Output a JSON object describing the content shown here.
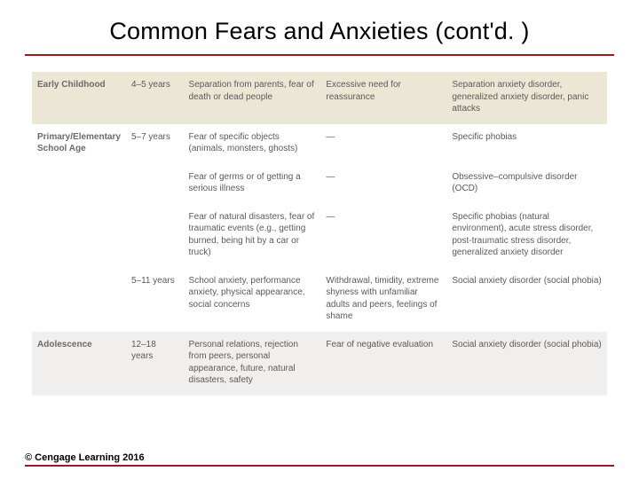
{
  "title": "Common Fears and Anxieties (cont'd. )",
  "footer": "© Cengage Learning 2016",
  "colors": {
    "accent_rule": "#9a1b1e",
    "band_beige": "#ece6d4",
    "band_white": "#ffffff",
    "band_grey": "#f1efed",
    "text_body": "#5a5a5a",
    "text_heading": "#6a6a6a"
  },
  "table": {
    "type": "table",
    "columns": [
      "stage",
      "age",
      "fears",
      "symptoms",
      "disorders"
    ],
    "column_widths_pct": [
      16,
      10,
      24,
      22,
      28
    ],
    "fontsize_pt": 10,
    "rows": [
      {
        "band": "beige",
        "stage": "Early Childhood",
        "age": "4–5 years",
        "fears": "Separation from parents, fear of death or dead people",
        "symptoms": "Excessive need for reassurance",
        "disorders": "Separation anxiety disorder, generalized anxiety disorder, panic attacks"
      },
      {
        "band": "white",
        "stage": "Primary/Elementary School Age",
        "age": "5–7 years",
        "fears": "Fear of specific objects (animals, monsters, ghosts)",
        "symptoms": "—",
        "disorders": "Specific phobias"
      },
      {
        "band": "white",
        "stage": "",
        "age": "",
        "fears": "Fear of germs or of getting a serious illness",
        "symptoms": "—",
        "disorders": "Obsessive–compulsive disorder (OCD)"
      },
      {
        "band": "white",
        "stage": "",
        "age": "",
        "fears": "Fear of natural disasters, fear of traumatic events (e.g., getting burned, being hit by a car or truck)",
        "symptoms": "—",
        "disorders": "Specific phobias (natural environment), acute stress disorder, post-traumatic stress disorder, generalized anxiety disorder"
      },
      {
        "band": "white",
        "stage": "",
        "age": "5–11 years",
        "fears": "School anxiety, performance anxiety, physical appearance, social concerns",
        "symptoms": "Withdrawal, timidity, extreme shyness with unfamiliar adults and peers, feelings of shame",
        "disorders": "Social anxiety disorder (social phobia)"
      },
      {
        "band": "grey",
        "stage": "Adolescence",
        "age": "12–18 years",
        "fears": "Personal relations, rejection from peers, personal appearance, future, natural disasters, safety",
        "symptoms": "Fear of negative evaluation",
        "disorders": "Social anxiety disorder (social phobia)"
      }
    ]
  }
}
